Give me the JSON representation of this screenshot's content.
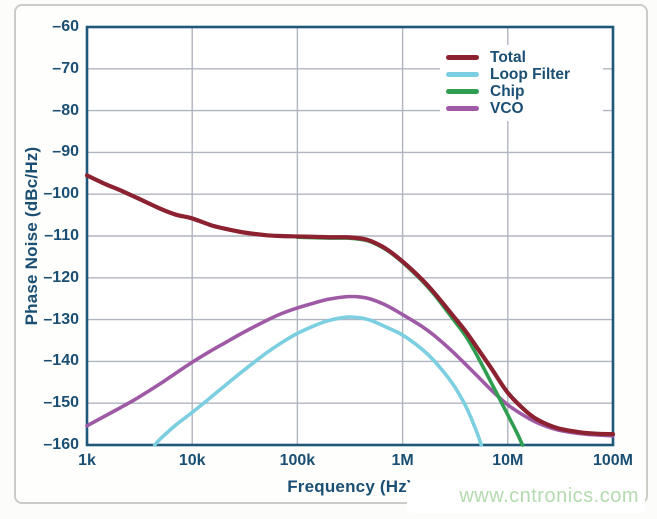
{
  "chart_data": {
    "type": "line",
    "title": "",
    "xlabel": "Frequency (Hz)",
    "ylabel": "Phase Noise (dBc/Hz)",
    "x_scale": "log",
    "xlim": [
      1000,
      100000000
    ],
    "ylim": [
      -160,
      -60
    ],
    "grid": true,
    "x_ticks": [
      {
        "value": 1000,
        "label": "1k"
      },
      {
        "value": 10000,
        "label": "10k"
      },
      {
        "value": 100000,
        "label": "100k"
      },
      {
        "value": 1000000,
        "label": "1M"
      },
      {
        "value": 10000000,
        "label": "10M"
      },
      {
        "value": 100000000,
        "label": "100M"
      }
    ],
    "y_ticks": [
      {
        "value": -60,
        "label": "–60"
      },
      {
        "value": -70,
        "label": "–70"
      },
      {
        "value": -80,
        "label": "–80"
      },
      {
        "value": -90,
        "label": "–90"
      },
      {
        "value": -100,
        "label": "–100"
      },
      {
        "value": -110,
        "label": "–110"
      },
      {
        "value": -120,
        "label": "–120"
      },
      {
        "value": -130,
        "label": "–130"
      },
      {
        "value": -140,
        "label": "–140"
      },
      {
        "value": -150,
        "label": "–150"
      },
      {
        "value": -160,
        "label": "–160"
      }
    ],
    "legend_position": "top-right",
    "series": [
      {
        "name": "Total",
        "color": "#8c2130",
        "points": [
          [
            1000,
            -95.5
          ],
          [
            1500,
            -97.6
          ],
          [
            2000,
            -98.9
          ],
          [
            3000,
            -100.9
          ],
          [
            5000,
            -103.5
          ],
          [
            7000,
            -104.9
          ],
          [
            10000,
            -105.8
          ],
          [
            15000,
            -107.4
          ],
          [
            20000,
            -108.2
          ],
          [
            30000,
            -109.1
          ],
          [
            50000,
            -109.8
          ],
          [
            70000,
            -110.0
          ],
          [
            100000,
            -110.1
          ],
          [
            150000,
            -110.2
          ],
          [
            200000,
            -110.3
          ],
          [
            300000,
            -110.3
          ],
          [
            400000,
            -110.6
          ],
          [
            500000,
            -111.2
          ],
          [
            700000,
            -113.1
          ],
          [
            1000000,
            -116.1
          ],
          [
            1500000,
            -120.2
          ],
          [
            2000000,
            -123.6
          ],
          [
            3000000,
            -129.0
          ],
          [
            4000000,
            -132.9
          ],
          [
            5000000,
            -136.4
          ],
          [
            7000000,
            -141.7
          ],
          [
            10000000,
            -147.5
          ],
          [
            15000000,
            -152.0
          ],
          [
            20000000,
            -154.2
          ],
          [
            30000000,
            -156.0
          ],
          [
            50000000,
            -157.0
          ],
          [
            70000000,
            -157.3
          ],
          [
            100000000,
            -157.4
          ]
        ]
      },
      {
        "name": "Loop Filter",
        "color": "#7ccfe0",
        "points": [
          [
            4400,
            -160
          ],
          [
            5000,
            -158.5
          ],
          [
            7000,
            -155.2
          ],
          [
            10000,
            -152.2
          ],
          [
            15000,
            -148.6
          ],
          [
            20000,
            -146.0
          ],
          [
            30000,
            -142.4
          ],
          [
            50000,
            -138.1
          ],
          [
            70000,
            -135.6
          ],
          [
            100000,
            -133.3
          ],
          [
            150000,
            -131.3
          ],
          [
            200000,
            -130.2
          ],
          [
            300000,
            -129.4
          ],
          [
            400000,
            -129.6
          ],
          [
            500000,
            -130.2
          ],
          [
            700000,
            -131.8
          ],
          [
            1000000,
            -133.7
          ],
          [
            1500000,
            -136.9
          ],
          [
            2000000,
            -139.9
          ],
          [
            3000000,
            -145.4
          ],
          [
            4000000,
            -150.8
          ],
          [
            5000000,
            -156.5
          ],
          [
            5600000,
            -160
          ]
        ]
      },
      {
        "name": "Chip",
        "color": "#2f9e50",
        "points": [
          [
            100000,
            -110.3
          ],
          [
            200000,
            -110.5
          ],
          [
            300000,
            -110.5
          ],
          [
            400000,
            -110.8
          ],
          [
            500000,
            -111.4
          ],
          [
            700000,
            -113.3
          ],
          [
            1000000,
            -116.3
          ],
          [
            1500000,
            -120.5
          ],
          [
            2000000,
            -124.0
          ],
          [
            3000000,
            -129.8
          ],
          [
            4000000,
            -134.0
          ],
          [
            5000000,
            -138.2
          ],
          [
            7000000,
            -145.2
          ],
          [
            10000000,
            -152.8
          ],
          [
            12000000,
            -156.7
          ],
          [
            13800000,
            -160
          ]
        ]
      },
      {
        "name": "VCO",
        "color": "#9f5aa5",
        "points": [
          [
            1000,
            -155.4
          ],
          [
            1500,
            -153.0
          ],
          [
            2000,
            -151.3
          ],
          [
            3000,
            -148.8
          ],
          [
            5000,
            -145.3
          ],
          [
            7000,
            -142.8
          ],
          [
            10000,
            -140.2
          ],
          [
            15000,
            -137.5
          ],
          [
            20000,
            -135.7
          ],
          [
            30000,
            -133.2
          ],
          [
            50000,
            -130.3
          ],
          [
            70000,
            -128.6
          ],
          [
            100000,
            -127.2
          ],
          [
            150000,
            -125.9
          ],
          [
            200000,
            -125.1
          ],
          [
            300000,
            -124.5
          ],
          [
            400000,
            -124.6
          ],
          [
            500000,
            -125.1
          ],
          [
            700000,
            -126.6
          ],
          [
            1000000,
            -128.8
          ],
          [
            1500000,
            -131.5
          ],
          [
            2000000,
            -133.8
          ],
          [
            3000000,
            -137.7
          ],
          [
            5000000,
            -143.2
          ],
          [
            7000000,
            -146.9
          ],
          [
            10000000,
            -150.4
          ],
          [
            15000000,
            -153.3
          ],
          [
            20000000,
            -154.9
          ],
          [
            30000000,
            -156.4
          ],
          [
            50000000,
            -157.3
          ],
          [
            70000000,
            -157.6
          ],
          [
            100000000,
            -157.8
          ]
        ]
      }
    ]
  },
  "styles": {
    "frame_color": "#1f587a",
    "grid_color": "#b0b4c0",
    "text_color": "#1a4f73",
    "plot_background": "#ffffff"
  },
  "watermark": {
    "text": "www.cntronics.com",
    "color": "#b4dbaf"
  }
}
